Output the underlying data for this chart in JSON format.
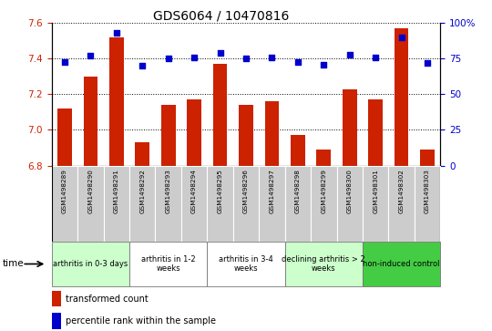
{
  "title": "GDS6064 / 10470816",
  "samples": [
    "GSM1498289",
    "GSM1498290",
    "GSM1498291",
    "GSM1498292",
    "GSM1498293",
    "GSM1498294",
    "GSM1498295",
    "GSM1498296",
    "GSM1498297",
    "GSM1498298",
    "GSM1498299",
    "GSM1498300",
    "GSM1498301",
    "GSM1498302",
    "GSM1498303"
  ],
  "bar_values": [
    7.12,
    7.3,
    7.52,
    6.93,
    7.14,
    7.17,
    7.37,
    7.14,
    7.16,
    6.97,
    6.89,
    7.23,
    7.17,
    7.57,
    6.89
  ],
  "percentile_values": [
    73,
    77,
    93,
    70,
    75,
    76,
    79,
    75,
    76,
    73,
    71,
    78,
    76,
    90,
    72
  ],
  "bar_color": "#cc2200",
  "percentile_color": "#0000cc",
  "ylim_left": [
    6.8,
    7.6
  ],
  "ylim_right": [
    0,
    100
  ],
  "yticks_left": [
    6.8,
    7.0,
    7.2,
    7.4,
    7.6
  ],
  "yticks_right": [
    0,
    25,
    50,
    75,
    100
  ],
  "groups": [
    {
      "label": "arthritis in 0-3 days",
      "start": 0,
      "end": 3,
      "color": "#ccffcc"
    },
    {
      "label": "arthritis in 1-2\nweeks",
      "start": 3,
      "end": 6,
      "color": "#ffffff"
    },
    {
      "label": "arthritis in 3-4\nweeks",
      "start": 6,
      "end": 9,
      "color": "#ffffff"
    },
    {
      "label": "declining arthritis > 2\nweeks",
      "start": 9,
      "end": 12,
      "color": "#ccffcc"
    },
    {
      "label": "non-induced control",
      "start": 12,
      "end": 15,
      "color": "#44cc44"
    }
  ],
  "legend_bar_label": "transformed count",
  "legend_percentile_label": "percentile rank within the sample",
  "tick_label_color_left": "#cc2200",
  "tick_label_color_right": "#0000cc",
  "title_fontsize": 10,
  "bar_width": 0.55,
  "sample_box_color": "#cccccc",
  "grid_color": "#000000"
}
